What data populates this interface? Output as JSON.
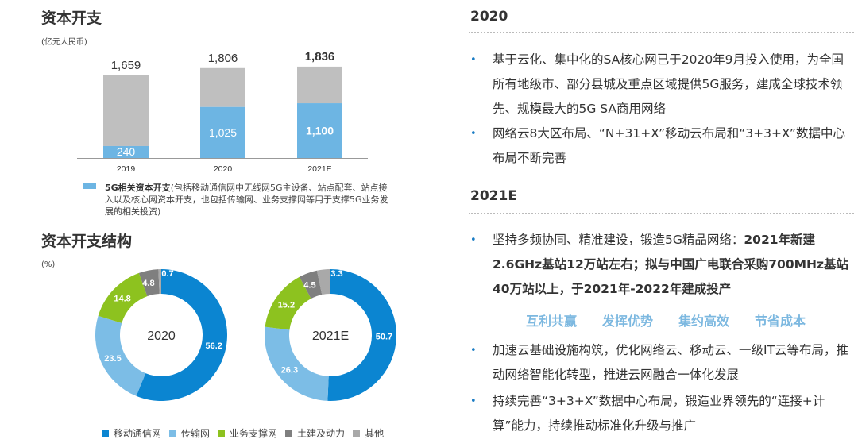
{
  "capex": {
    "title": "资本开支",
    "unit": "(亿元人民币)",
    "note_bold": "5G相关资本开支",
    "note_rest": "(包括移动通信网中无线网5G主设备、站点配套、站点接入以及核心网资本开支，也包括传输网、业务支撑网等用于支撑5G业务发展的相关投资)"
  },
  "structure": {
    "title": "资本开支结构",
    "unit": "(%)"
  },
  "chart_data": [
    {
      "type": "bar",
      "stacked": true,
      "categories": [
        "2019",
        "2020",
        "2021E"
      ],
      "totals": [
        1659,
        1806,
        1836
      ],
      "total_labels": [
        "1,659",
        "1,806",
        "1,836"
      ],
      "series": [
        {
          "name": "5G相关资本开支",
          "values": [
            240,
            1025,
            1100
          ],
          "labels": [
            "240",
            "1,025",
            "1,100"
          ],
          "color": "#6db5e3"
        },
        {
          "values": [
            1419,
            781,
            736
          ],
          "color": "#bfbfbf"
        }
      ],
      "ylabel": "(亿元人民币)"
    },
    {
      "type": "pie",
      "donut": true,
      "center_label": "2020",
      "categories": [
        "移动通信网",
        "传输网",
        "业务支撑网",
        "土建及动力",
        "其他"
      ],
      "values": [
        56.2,
        23.5,
        14.8,
        4.8,
        0.7
      ],
      "colors": [
        "#0b85d1",
        "#7cbde6",
        "#8dc21f",
        "#7f7f7f",
        "#a9a9a9"
      ]
    },
    {
      "type": "pie",
      "donut": true,
      "center_label": "2021E",
      "categories": [
        "移动通信网",
        "传输网",
        "业务支撑网",
        "土建及动力",
        "其他"
      ],
      "values": [
        50.7,
        26.3,
        15.2,
        4.5,
        3.3
      ],
      "colors": [
        "#0b85d1",
        "#7cbde6",
        "#8dc21f",
        "#7f7f7f",
        "#a9a9a9"
      ]
    }
  ],
  "legend": [
    "移动通信网",
    "传输网",
    "业务支撑网",
    "土建及动力",
    "其他"
  ],
  "right": {
    "s2020": {
      "title": "2020",
      "bullets": [
        "基于云化、集中化的SA核心网已于2020年9月投入使用，为全国所有地级市、部分县城及重点区域提供5G服务，建成全球技术领先、规模最大的5G SA商用网络",
        "网络云8大区布局、“N+31+X”移动云布局和“3+3+X”数据中心布局不断完善"
      ]
    },
    "s2021": {
      "title": "2021E",
      "b1_normal": "坚持多频协同、精准建设，锻造5G精品网络：",
      "b1_bold": "2021年新建2.6GHz基站12万站左右；拟与中国广电联合采购700MHz基站40万站以上，于2021年-2022年建成投产",
      "keywords": [
        "互利共赢",
        "发挥优势",
        "集约高效",
        "节省成本"
      ],
      "bullets": [
        "加速云基础设施构筑，优化网络云、移动云、一级IT云等布局，推动网络智能化转型，推进云网融合一体化发展",
        "持续完善“3+3+X”数据中心布局，锻造业界领先的“连接+计算”能力，持续推动标准化升级与推广"
      ]
    }
  }
}
